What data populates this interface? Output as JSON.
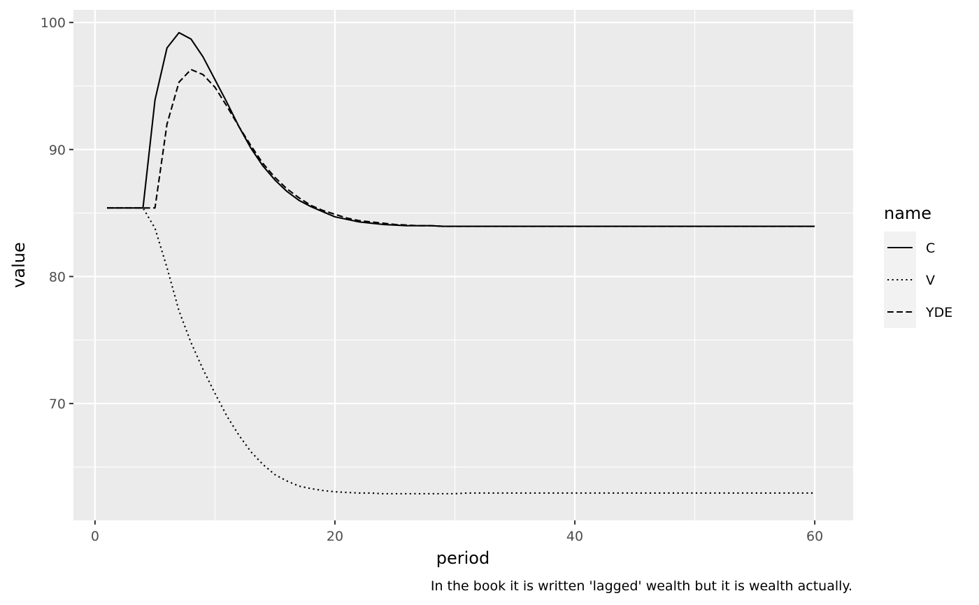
{
  "chart_data": {
    "type": "line",
    "title": "",
    "xlabel": "period",
    "ylabel": "value",
    "caption": "In the book it is written 'lagged' wealth but it is wealth actually.",
    "xlim": [
      -1.8,
      63.2
    ],
    "ylim": [
      60.8,
      101.0
    ],
    "x_ticks": [
      0,
      20,
      40,
      60
    ],
    "x_tick_labels": [
      "0",
      "20",
      "40",
      "60"
    ],
    "x_minor_ticks": [
      10,
      30,
      50
    ],
    "y_ticks": [
      70,
      80,
      90,
      100
    ],
    "y_tick_labels": [
      "70",
      "80",
      "90",
      "100"
    ],
    "y_minor_ticks": [
      65,
      75,
      85,
      95
    ],
    "grid": true,
    "legend": {
      "title": "name",
      "position": "right"
    },
    "colors": {
      "panel": "#ebebeb",
      "grid": "#ffffff",
      "line": "#000000",
      "legend_key": "#f2f2f2"
    },
    "series": [
      {
        "name": "C",
        "linetype": "solid",
        "x": [
          1,
          2,
          3,
          4,
          5,
          6,
          7,
          8,
          9,
          10,
          11,
          12,
          13,
          14,
          15,
          16,
          17,
          18,
          19,
          20,
          21,
          22,
          23,
          24,
          25,
          26,
          27,
          28,
          29,
          30,
          31,
          32,
          33,
          34,
          35,
          36,
          37,
          38,
          39,
          40,
          41,
          42,
          43,
          44,
          45,
          46,
          47,
          48,
          49,
          50,
          51,
          52,
          53,
          54,
          55,
          56,
          57,
          58,
          59,
          60
        ],
        "y": [
          85.4,
          85.4,
          85.4,
          85.4,
          93.9,
          98.0,
          99.2,
          98.7,
          97.3,
          95.5,
          93.7,
          91.8,
          90.1,
          88.7,
          87.6,
          86.7,
          86.0,
          85.5,
          85.1,
          84.7,
          84.5,
          84.3,
          84.2,
          84.1,
          84.05,
          84.0,
          84.0,
          84.0,
          83.95,
          83.95,
          83.95,
          83.95,
          83.95,
          83.95,
          83.95,
          83.95,
          83.95,
          83.95,
          83.95,
          83.95,
          83.95,
          83.95,
          83.95,
          83.95,
          83.95,
          83.95,
          83.95,
          83.95,
          83.95,
          83.95,
          83.95,
          83.95,
          83.95,
          83.95,
          83.95,
          83.95,
          83.95,
          83.95,
          83.95,
          83.95
        ]
      },
      {
        "name": "V",
        "linetype": "dotted",
        "x": [
          1,
          2,
          3,
          4,
          5,
          6,
          7,
          8,
          9,
          10,
          11,
          12,
          13,
          14,
          15,
          16,
          17,
          18,
          19,
          20,
          21,
          22,
          23,
          24,
          25,
          26,
          27,
          28,
          29,
          30,
          31,
          32,
          33,
          34,
          35,
          36,
          37,
          38,
          39,
          40,
          41,
          42,
          43,
          44,
          45,
          46,
          47,
          48,
          49,
          50,
          51,
          52,
          53,
          54,
          55,
          56,
          57,
          58,
          59,
          60
        ],
        "y": [
          85.4,
          85.4,
          85.4,
          85.4,
          83.8,
          80.7,
          77.3,
          74.8,
          72.7,
          70.8,
          69.0,
          67.5,
          66.2,
          65.2,
          64.4,
          63.9,
          63.5,
          63.3,
          63.15,
          63.05,
          63.0,
          62.95,
          62.95,
          62.9,
          62.9,
          62.9,
          62.9,
          62.9,
          62.9,
          62.9,
          62.95,
          62.95,
          62.95,
          62.95,
          62.95,
          62.95,
          62.95,
          62.95,
          62.95,
          62.95,
          62.95,
          62.95,
          62.95,
          62.95,
          62.95,
          62.95,
          62.95,
          62.95,
          62.95,
          62.95,
          62.95,
          62.95,
          62.95,
          62.95,
          62.95,
          62.95,
          62.95,
          62.95,
          62.95,
          62.95
        ]
      },
      {
        "name": "YDE",
        "linetype": "dashed",
        "x": [
          1,
          2,
          3,
          4,
          5,
          6,
          7,
          8,
          9,
          10,
          11,
          12,
          13,
          14,
          15,
          16,
          17,
          18,
          19,
          20,
          21,
          22,
          23,
          24,
          25,
          26,
          27,
          28,
          29,
          30,
          31,
          32,
          33,
          34,
          35,
          36,
          37,
          38,
          39,
          40,
          41,
          42,
          43,
          44,
          45,
          46,
          47,
          48,
          49,
          50,
          51,
          52,
          53,
          54,
          55,
          56,
          57,
          58,
          59,
          60
        ],
        "y": [
          85.4,
          85.4,
          85.4,
          85.4,
          85.4,
          92.0,
          95.3,
          96.3,
          95.9,
          94.9,
          93.4,
          91.8,
          90.3,
          88.9,
          87.8,
          86.9,
          86.2,
          85.6,
          85.2,
          84.9,
          84.6,
          84.4,
          84.3,
          84.2,
          84.1,
          84.05,
          84.0,
          84.0,
          83.95,
          83.95,
          83.95,
          83.95,
          83.95,
          83.95,
          83.95,
          83.95,
          83.95,
          83.95,
          83.95,
          83.95,
          83.95,
          83.95,
          83.95,
          83.95,
          83.95,
          83.95,
          83.95,
          83.95,
          83.95,
          83.95,
          83.95,
          83.95,
          83.95,
          83.95,
          83.95,
          83.95,
          83.95,
          83.95,
          83.95,
          83.95
        ]
      }
    ]
  }
}
